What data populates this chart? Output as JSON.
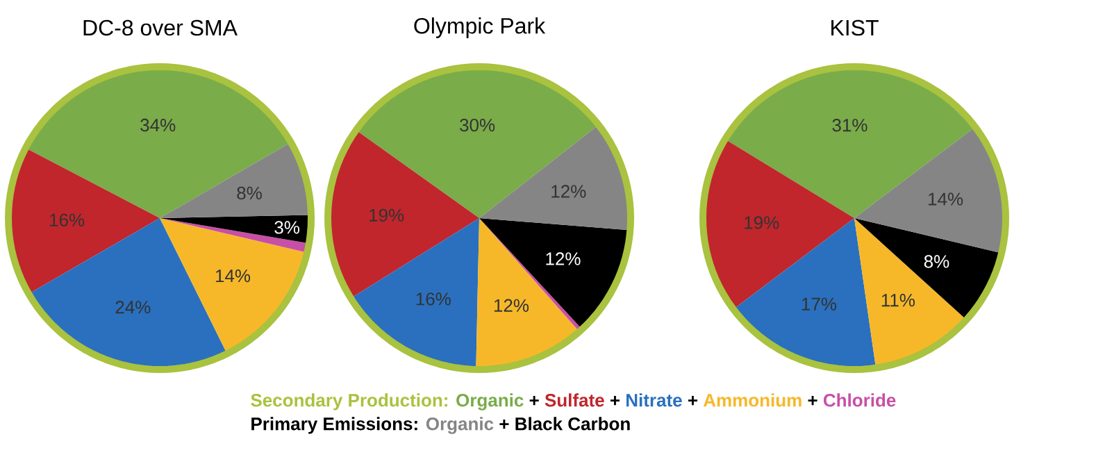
{
  "chart_data": [
    {
      "type": "pie",
      "title": "DC-8 over SMA",
      "categories": [
        null,
        null,
        null,
        null,
        null,
        null,
        null
      ],
      "values": [
        34,
        16,
        24,
        14,
        1,
        3,
        8
      ],
      "value_labels": [
        "34%",
        "16%",
        "24%",
        "14%",
        null,
        "3%",
        "8%"
      ],
      "colors": [
        "#7aac4a",
        "#c0262c",
        "#2a70bf",
        "#f6b829",
        "#c84fa6",
        "#000000",
        "#858585"
      ],
      "annotations": [
        "Secondary Production:",
        "Primary Emissions:",
        "+",
        "+",
        "+",
        "+",
        "+",
        "Organic",
        "Sulfate",
        "Nitrate",
        "Ammonium",
        "Chloride",
        "Black Carbon",
        "Organic"
      ]
    },
    {
      "type": "pie",
      "title": "Olympic Park",
      "categories": [
        null,
        null,
        null,
        null,
        null,
        null,
        null
      ],
      "values": [
        30,
        19,
        16,
        12,
        0.4,
        12,
        12
      ],
      "value_labels": [
        "30%",
        "19%",
        "16%",
        "12%",
        null,
        "12%",
        "12%"
      ],
      "colors": [
        "#7aac4a",
        "#c0262c",
        "#2a70bf",
        "#f6b829",
        "#c84fa6",
        "#000000",
        "#858585"
      ]
    },
    {
      "type": "pie",
      "title": "KIST",
      "categories": [
        null,
        null,
        null,
        null,
        null,
        null,
        null
      ],
      "values": [
        31,
        19,
        17,
        11,
        0,
        8,
        14
      ],
      "value_labels": [
        "31%",
        "19%",
        "17%",
        "11%",
        null,
        "8%",
        "14%"
      ],
      "colors": [
        "#7aac4a",
        "#c0262c",
        "#2a70bf",
        "#f6b829",
        "#c84fa6",
        "#000000",
        "#858585"
      ]
    }
  ]
}
